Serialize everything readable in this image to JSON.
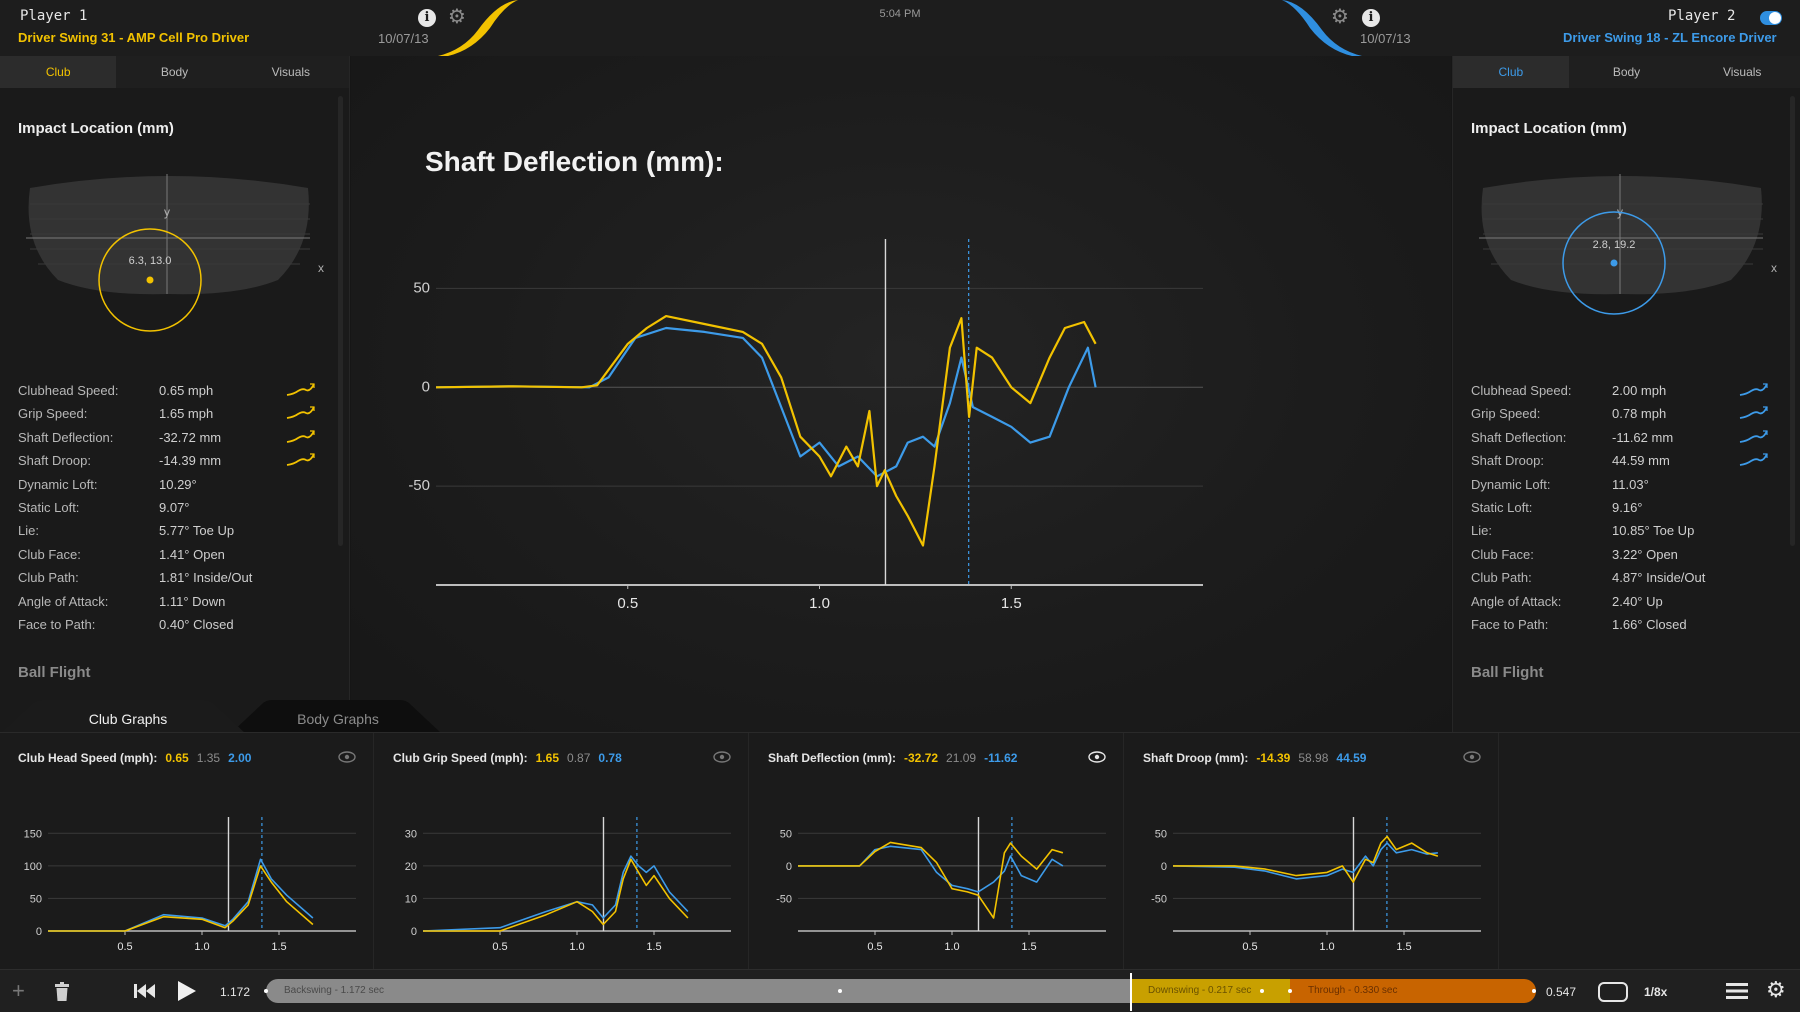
{
  "header": {
    "time": "5:04 PM",
    "p1": {
      "name": "Player 1",
      "swing": "Driver Swing 31 - AMP Cell Pro Driver",
      "date": "10/07/13"
    },
    "p2": {
      "name": "Player 2",
      "swing": "Driver Swing 18 - ZL Encore Driver",
      "date": "10/07/13"
    }
  },
  "colors": {
    "p1": "#f2c200",
    "p2": "#3d9be9",
    "accent_orange": "#c86400"
  },
  "tabs": [
    "Club",
    "Body",
    "Visuals"
  ],
  "left_panel": {
    "impact_title": "Impact Location (mm)",
    "axis_y": "y",
    "axis_x": "x",
    "impact_label": "6.3, 13.0",
    "impact_point": {
      "x": 6.3,
      "y": 13.0
    },
    "stats": [
      {
        "label": "Clubhead Speed:",
        "value": "0.65 mph",
        "spark": true
      },
      {
        "label": "Grip Speed:",
        "value": "1.65 mph",
        "spark": true
      },
      {
        "label": "Shaft Deflection:",
        "value": "-32.72 mm",
        "spark": true
      },
      {
        "label": "Shaft Droop:",
        "value": "-14.39 mm",
        "spark": true
      },
      {
        "label": "Dynamic Loft:",
        "value": "10.29°"
      },
      {
        "label": "Static Loft:",
        "value": "9.07°"
      },
      {
        "label": "Lie:",
        "value": "5.77° Toe Up"
      },
      {
        "label": "Club Face:",
        "value": "1.41° Open"
      },
      {
        "label": "Club Path:",
        "value": "1.81° Inside/Out"
      },
      {
        "label": "Angle of Attack:",
        "value": "1.11° Down"
      },
      {
        "label": "Face to Path:",
        "value": "0.40° Closed"
      }
    ],
    "ball_flight": "Ball Flight"
  },
  "right_panel": {
    "impact_title": "Impact Location (mm)",
    "axis_y": "y",
    "axis_x": "x",
    "impact_label": "2.8, 19.2",
    "impact_point": {
      "x": 2.8,
      "y": 19.2
    },
    "stats": [
      {
        "label": "Clubhead Speed:",
        "value": "2.00 mph",
        "spark": true
      },
      {
        "label": "Grip Speed:",
        "value": "0.78 mph",
        "spark": true
      },
      {
        "label": "Shaft Deflection:",
        "value": "-11.62 mm",
        "spark": true
      },
      {
        "label": "Shaft Droop:",
        "value": "44.59 mm",
        "spark": true
      },
      {
        "label": "Dynamic Loft:",
        "value": "11.03°"
      },
      {
        "label": "Static Loft:",
        "value": "9.16°"
      },
      {
        "label": "Lie:",
        "value": "10.85° Toe Up"
      },
      {
        "label": "Club Face:",
        "value": "3.22° Open"
      },
      {
        "label": "Club Path:",
        "value": "4.87° Inside/Out"
      },
      {
        "label": "Angle of Attack:",
        "value": "2.40° Up"
      },
      {
        "label": "Face to Path:",
        "value": "1.66° Closed"
      }
    ],
    "ball_flight": "Ball Flight"
  },
  "main_chart": {
    "title": "Shaft Deflection (mm):"
  },
  "graph_tabs": [
    "Club Graphs",
    "Body Graphs"
  ],
  "mini_titles": [
    {
      "label": "Club Head Speed (mph):",
      "v1": "0.65",
      "v2": "1.35",
      "v3": "2.00"
    },
    {
      "label": "Club Grip Speed (mph):",
      "v1": "1.65",
      "v2": "0.87",
      "v3": "0.78"
    },
    {
      "label": "Shaft Deflection (mm):",
      "v1": "-32.72",
      "v2": "21.09",
      "v3": "-11.62"
    },
    {
      "label": "Shaft Droop (mm):",
      "v1": "-14.39",
      "v2": "58.98",
      "v3": "44.59"
    }
  ],
  "chart_data": [
    {
      "type": "line",
      "title": "Shaft Deflection (mm):",
      "xlim": [
        0,
        2.0
      ],
      "ylim": [
        -100,
        75
      ],
      "xticks": [
        0.5,
        1.0,
        1.5
      ],
      "yticks": [
        50,
        0,
        -50
      ],
      "cursor_x": 1.172,
      "cursor2_x": 1.389,
      "grid": true,
      "series": [
        {
          "color": "#f2c200",
          "x": [
            0,
            0.2,
            0.38,
            0.42,
            0.5,
            0.55,
            0.6,
            0.7,
            0.8,
            0.85,
            0.9,
            0.95,
            1.0,
            1.03,
            1.07,
            1.1,
            1.13,
            1.15,
            1.17,
            1.2,
            1.23,
            1.27,
            1.3,
            1.34,
            1.37,
            1.38,
            1.39,
            1.41,
            1.45,
            1.5,
            1.55,
            1.6,
            1.64,
            1.69,
            1.72
          ],
          "y": [
            0,
            0.5,
            0,
            1,
            22,
            30,
            36,
            32,
            28,
            22,
            5,
            -25,
            -35,
            -45,
            -30,
            -40,
            -12,
            -50,
            -42,
            -55,
            -65,
            -80,
            -40,
            20,
            35,
            10,
            -15,
            20,
            15,
            0,
            -8,
            15,
            30,
            33,
            22
          ]
        },
        {
          "color": "#3d9be9",
          "x": [
            0,
            0.2,
            0.4,
            0.45,
            0.52,
            0.6,
            0.7,
            0.8,
            0.85,
            0.9,
            0.95,
            1.0,
            1.05,
            1.1,
            1.15,
            1.2,
            1.23,
            1.27,
            1.3,
            1.34,
            1.37,
            1.4,
            1.45,
            1.5,
            1.55,
            1.6,
            1.65,
            1.7,
            1.72
          ],
          "y": [
            0,
            0.5,
            0,
            5,
            25,
            30,
            28,
            25,
            15,
            -10,
            -35,
            -28,
            -40,
            -35,
            -45,
            -40,
            -28,
            -25,
            -30,
            -8,
            15,
            -10,
            -15,
            -20,
            -28,
            -25,
            0,
            20,
            0
          ]
        }
      ]
    },
    {
      "type": "line",
      "title": "Club Head Speed (mph):",
      "xlim": [
        0.0,
        2.0
      ],
      "ylim": [
        0,
        175
      ],
      "xticks": [
        0.5,
        1.0,
        1.5
      ],
      "yticks": [
        150,
        100,
        50,
        0
      ],
      "cursor_x": 1.172,
      "cursor2_x": 1.389,
      "series": [
        {
          "color": "#f2c200",
          "x": [
            0,
            0.5,
            0.75,
            1.0,
            1.15,
            1.2,
            1.3,
            1.38,
            1.45,
            1.55,
            1.72
          ],
          "y": [
            0,
            0,
            22,
            18,
            5,
            15,
            40,
            100,
            75,
            45,
            10
          ]
        },
        {
          "color": "#3d9be9",
          "x": [
            0,
            0.5,
            0.75,
            1.0,
            1.15,
            1.2,
            1.3,
            1.38,
            1.45,
            1.55,
            1.72
          ],
          "y": [
            0,
            0,
            25,
            20,
            8,
            18,
            45,
            110,
            80,
            55,
            20
          ]
        }
      ]
    },
    {
      "type": "line",
      "title": "Club Grip Speed (mph):",
      "xlim": [
        0.0,
        2.0
      ],
      "ylim": [
        0,
        35
      ],
      "xticks": [
        0.5,
        1.0,
        1.5
      ],
      "yticks": [
        30,
        20,
        10,
        0
      ],
      "cursor_x": 1.172,
      "cursor2_x": 1.389,
      "series": [
        {
          "color": "#f2c200",
          "x": [
            0,
            0.5,
            0.8,
            1.0,
            1.1,
            1.17,
            1.25,
            1.3,
            1.35,
            1.4,
            1.45,
            1.5,
            1.6,
            1.72
          ],
          "y": [
            0,
            0,
            5,
            9,
            6,
            2,
            6,
            16,
            22,
            18,
            14,
            17,
            10,
            4
          ]
        },
        {
          "color": "#3d9be9",
          "x": [
            0,
            0.5,
            0.8,
            1.0,
            1.1,
            1.17,
            1.25,
            1.3,
            1.35,
            1.4,
            1.45,
            1.5,
            1.6,
            1.72
          ],
          "y": [
            0,
            1,
            6,
            9,
            8,
            4,
            8,
            18,
            23,
            20,
            18,
            20,
            12,
            6
          ]
        }
      ]
    },
    {
      "type": "line",
      "title": "Shaft Deflection (mm):",
      "xlim": [
        0.0,
        2.0
      ],
      "ylim": [
        -100,
        75
      ],
      "xticks": [
        0.5,
        1.0,
        1.5
      ],
      "yticks": [
        50,
        0,
        -50
      ],
      "cursor_x": 1.172,
      "cursor2_x": 1.389,
      "series": [
        {
          "color": "#f2c200",
          "x": [
            0,
            0.4,
            0.5,
            0.6,
            0.8,
            0.9,
            1.0,
            1.1,
            1.17,
            1.27,
            1.34,
            1.38,
            1.45,
            1.55,
            1.65,
            1.72
          ],
          "y": [
            0,
            0,
            22,
            36,
            28,
            5,
            -35,
            -40,
            -45,
            -80,
            20,
            35,
            15,
            -5,
            25,
            20
          ]
        },
        {
          "color": "#3d9be9",
          "x": [
            0,
            0.4,
            0.5,
            0.6,
            0.8,
            0.9,
            1.0,
            1.1,
            1.17,
            1.27,
            1.34,
            1.38,
            1.45,
            1.55,
            1.65,
            1.72
          ],
          "y": [
            0,
            0,
            25,
            30,
            25,
            -10,
            -30,
            -35,
            -40,
            -25,
            -8,
            15,
            -15,
            -25,
            10,
            0
          ]
        }
      ]
    },
    {
      "type": "line",
      "title": "Shaft Droop (mm):",
      "xlim": [
        0.0,
        2.0
      ],
      "ylim": [
        -100,
        75
      ],
      "xticks": [
        0.5,
        1.0,
        1.5
      ],
      "yticks": [
        50,
        0,
        -50
      ],
      "cursor_x": 1.172,
      "cursor2_x": 1.389,
      "series": [
        {
          "color": "#f2c200",
          "x": [
            0,
            0.4,
            0.6,
            0.8,
            1.0,
            1.1,
            1.17,
            1.25,
            1.3,
            1.35,
            1.39,
            1.45,
            1.55,
            1.65,
            1.72
          ],
          "y": [
            0,
            0,
            -5,
            -15,
            -10,
            0,
            -25,
            10,
            5,
            35,
            45,
            25,
            35,
            20,
            15
          ]
        },
        {
          "color": "#3d9be9",
          "x": [
            0,
            0.4,
            0.6,
            0.8,
            1.0,
            1.1,
            1.17,
            1.25,
            1.3,
            1.35,
            1.39,
            1.45,
            1.55,
            1.65,
            1.72
          ],
          "y": [
            0,
            -2,
            -8,
            -20,
            -15,
            -5,
            -10,
            15,
            0,
            25,
            35,
            20,
            25,
            18,
            20
          ]
        }
      ]
    }
  ],
  "playback": {
    "current_time": "1.172",
    "backswing": "Backswing - 1.172 sec",
    "downswing": "Downswing - 0.217 sec",
    "through": "Through - 0.330 sec",
    "end_time": "0.547",
    "speed": "1/8x"
  }
}
